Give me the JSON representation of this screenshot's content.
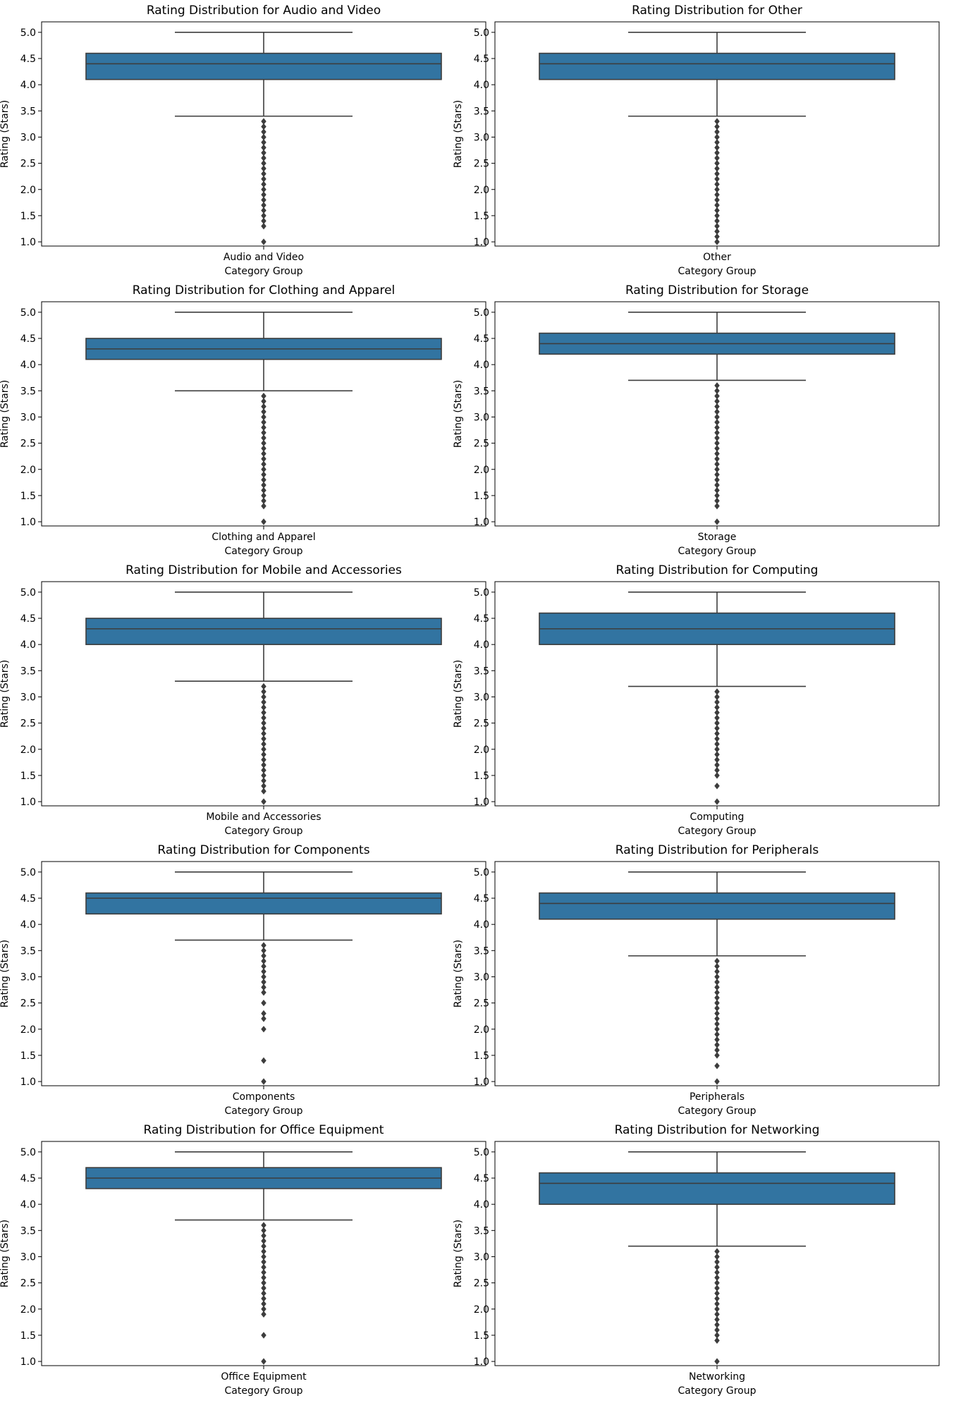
{
  "chart_data": [
    {
      "type": "box",
      "title": "Rating Distribution for Audio and Video",
      "category": "Audio and Video",
      "xlabel": "Category Group",
      "ylabel": "Rating (Stars)",
      "ylim": [
        0.92,
        5.2
      ],
      "yticks": [
        "1.0",
        "1.5",
        "2.0",
        "2.5",
        "3.0",
        "3.5",
        "4.0",
        "4.5",
        "5.0"
      ],
      "box": {
        "q1": 4.1,
        "median": 4.4,
        "q3": 4.6,
        "whisker_low": 3.4,
        "whisker_high": 5.0
      },
      "outliers": [
        1.0,
        1.3,
        1.4,
        1.5,
        1.6,
        1.7,
        1.8,
        1.9,
        2.0,
        2.1,
        2.2,
        2.3,
        2.4,
        2.5,
        2.6,
        2.7,
        2.8,
        2.9,
        3.0,
        3.1,
        3.2,
        3.3
      ],
      "grid": false,
      "box_color": "#3274a1"
    },
    {
      "type": "box",
      "title": "Rating Distribution for Other",
      "category": "Other",
      "xlabel": "Category Group",
      "ylabel": "Rating (Stars)",
      "ylim": [
        0.92,
        5.2
      ],
      "yticks": [
        "1.0",
        "1.5",
        "2.0",
        "2.5",
        "3.0",
        "3.5",
        "4.0",
        "4.5",
        "5.0"
      ],
      "box": {
        "q1": 4.1,
        "median": 4.4,
        "q3": 4.6,
        "whisker_low": 3.4,
        "whisker_high": 5.0
      },
      "outliers": [
        1.0,
        1.1,
        1.2,
        1.3,
        1.4,
        1.5,
        1.6,
        1.7,
        1.8,
        1.9,
        2.0,
        2.1,
        2.2,
        2.3,
        2.4,
        2.5,
        2.6,
        2.7,
        2.8,
        2.9,
        3.0,
        3.1,
        3.2,
        3.3
      ],
      "grid": false,
      "box_color": "#3274a1"
    },
    {
      "type": "box",
      "title": "Rating Distribution for Clothing and Apparel",
      "category": "Clothing and Apparel",
      "xlabel": "Category Group",
      "ylabel": "Rating (Stars)",
      "ylim": [
        0.92,
        5.2
      ],
      "yticks": [
        "1.0",
        "1.5",
        "2.0",
        "2.5",
        "3.0",
        "3.5",
        "4.0",
        "4.5",
        "5.0"
      ],
      "box": {
        "q1": 4.1,
        "median": 4.3,
        "q3": 4.5,
        "whisker_low": 3.5,
        "whisker_high": 5.0
      },
      "outliers": [
        1.0,
        1.3,
        1.4,
        1.5,
        1.6,
        1.7,
        1.8,
        1.9,
        2.0,
        2.1,
        2.2,
        2.3,
        2.4,
        2.5,
        2.6,
        2.7,
        2.8,
        2.9,
        3.0,
        3.1,
        3.2,
        3.3,
        3.4
      ],
      "grid": false,
      "box_color": "#3274a1"
    },
    {
      "type": "box",
      "title": "Rating Distribution for Storage",
      "category": "Storage",
      "xlabel": "Category Group",
      "ylabel": "Rating (Stars)",
      "ylim": [
        0.92,
        5.2
      ],
      "yticks": [
        "1.0",
        "1.5",
        "2.0",
        "2.5",
        "3.0",
        "3.5",
        "4.0",
        "4.5",
        "5.0"
      ],
      "box": {
        "q1": 4.2,
        "median": 4.4,
        "q3": 4.6,
        "whisker_low": 3.7,
        "whisker_high": 5.0
      },
      "outliers": [
        1.0,
        1.3,
        1.4,
        1.5,
        1.6,
        1.7,
        1.8,
        1.9,
        2.0,
        2.1,
        2.2,
        2.3,
        2.4,
        2.5,
        2.6,
        2.7,
        2.8,
        2.9,
        3.0,
        3.1,
        3.2,
        3.3,
        3.4,
        3.5,
        3.6
      ],
      "grid": false,
      "box_color": "#3274a1"
    },
    {
      "type": "box",
      "title": "Rating Distribution for Mobile and Accessories",
      "category": "Mobile and Accessories",
      "xlabel": "Category Group",
      "ylabel": "Rating (Stars)",
      "ylim": [
        0.92,
        5.2
      ],
      "yticks": [
        "1.0",
        "1.5",
        "2.0",
        "2.5",
        "3.0",
        "3.5",
        "4.0",
        "4.5",
        "5.0"
      ],
      "box": {
        "q1": 4.0,
        "median": 4.3,
        "q3": 4.5,
        "whisker_low": 3.3,
        "whisker_high": 5.0
      },
      "outliers": [
        1.0,
        1.2,
        1.3,
        1.4,
        1.5,
        1.6,
        1.7,
        1.8,
        1.9,
        2.0,
        2.1,
        2.2,
        2.3,
        2.4,
        2.5,
        2.6,
        2.7,
        2.8,
        2.9,
        3.0,
        3.1,
        3.2
      ],
      "grid": false,
      "box_color": "#3274a1"
    },
    {
      "type": "box",
      "title": "Rating Distribution for Computing",
      "category": "Computing",
      "xlabel": "Category Group",
      "ylabel": "Rating (Stars)",
      "ylim": [
        0.92,
        5.2
      ],
      "yticks": [
        "1.0",
        "1.5",
        "2.0",
        "2.5",
        "3.0",
        "3.5",
        "4.0",
        "4.5",
        "5.0"
      ],
      "box": {
        "q1": 4.0,
        "median": 4.3,
        "q3": 4.6,
        "whisker_low": 3.2,
        "whisker_high": 5.0
      },
      "outliers": [
        1.0,
        1.3,
        1.5,
        1.6,
        1.7,
        1.8,
        1.9,
        2.0,
        2.1,
        2.2,
        2.3,
        2.4,
        2.5,
        2.6,
        2.7,
        2.8,
        2.9,
        3.0,
        3.1
      ],
      "grid": false,
      "box_color": "#3274a1"
    },
    {
      "type": "box",
      "title": "Rating Distribution for Components",
      "category": "Components",
      "xlabel": "Category Group",
      "ylabel": "Rating (Stars)",
      "ylim": [
        0.92,
        5.2
      ],
      "yticks": [
        "1.0",
        "1.5",
        "2.0",
        "2.5",
        "3.0",
        "3.5",
        "4.0",
        "4.5",
        "5.0"
      ],
      "box": {
        "q1": 4.2,
        "median": 4.5,
        "q3": 4.6,
        "whisker_low": 3.7,
        "whisker_high": 5.0
      },
      "outliers": [
        1.0,
        1.4,
        2.0,
        2.2,
        2.3,
        2.5,
        2.7,
        2.8,
        2.9,
        3.0,
        3.1,
        3.2,
        3.3,
        3.4,
        3.5,
        3.6
      ],
      "grid": false,
      "box_color": "#3274a1"
    },
    {
      "type": "box",
      "title": "Rating Distribution for Peripherals",
      "category": "Peripherals",
      "xlabel": "Category Group",
      "ylabel": "Rating (Stars)",
      "ylim": [
        0.92,
        5.2
      ],
      "yticks": [
        "1.0",
        "1.5",
        "2.0",
        "2.5",
        "3.0",
        "3.5",
        "4.0",
        "4.5",
        "5.0"
      ],
      "box": {
        "q1": 4.1,
        "median": 4.4,
        "q3": 4.6,
        "whisker_low": 3.4,
        "whisker_high": 5.0
      },
      "outliers": [
        1.0,
        1.3,
        1.5,
        1.6,
        1.7,
        1.8,
        1.9,
        2.0,
        2.1,
        2.2,
        2.3,
        2.4,
        2.5,
        2.6,
        2.7,
        2.8,
        2.9,
        3.0,
        3.1,
        3.2,
        3.3
      ],
      "grid": false,
      "box_color": "#3274a1"
    },
    {
      "type": "box",
      "title": "Rating Distribution for Office Equipment",
      "category": "Office Equipment",
      "xlabel": "Category Group",
      "ylabel": "Rating (Stars)",
      "ylim": [
        0.92,
        5.2
      ],
      "yticks": [
        "1.0",
        "1.5",
        "2.0",
        "2.5",
        "3.0",
        "3.5",
        "4.0",
        "4.5",
        "5.0"
      ],
      "box": {
        "q1": 4.3,
        "median": 4.5,
        "q3": 4.7,
        "whisker_low": 3.7,
        "whisker_high": 5.0
      },
      "outliers": [
        1.0,
        1.5,
        1.9,
        2.0,
        2.1,
        2.2,
        2.3,
        2.4,
        2.5,
        2.6,
        2.7,
        2.8,
        2.9,
        3.0,
        3.1,
        3.2,
        3.3,
        3.4,
        3.5,
        3.6
      ],
      "grid": false,
      "box_color": "#3274a1"
    },
    {
      "type": "box",
      "title": "Rating Distribution for Networking",
      "category": "Networking",
      "xlabel": "Category Group",
      "ylabel": "Rating (Stars)",
      "ylim": [
        0.92,
        5.2
      ],
      "yticks": [
        "1.0",
        "1.5",
        "2.0",
        "2.5",
        "3.0",
        "3.5",
        "4.0",
        "4.5",
        "5.0"
      ],
      "box": {
        "q1": 4.0,
        "median": 4.4,
        "q3": 4.6,
        "whisker_low": 3.2,
        "whisker_high": 5.0
      },
      "outliers": [
        1.0,
        1.4,
        1.5,
        1.6,
        1.7,
        1.8,
        1.9,
        2.0,
        2.1,
        2.2,
        2.3,
        2.4,
        2.5,
        2.6,
        2.7,
        2.8,
        2.9,
        3.0,
        3.1
      ],
      "grid": false,
      "box_color": "#3274a1"
    }
  ]
}
